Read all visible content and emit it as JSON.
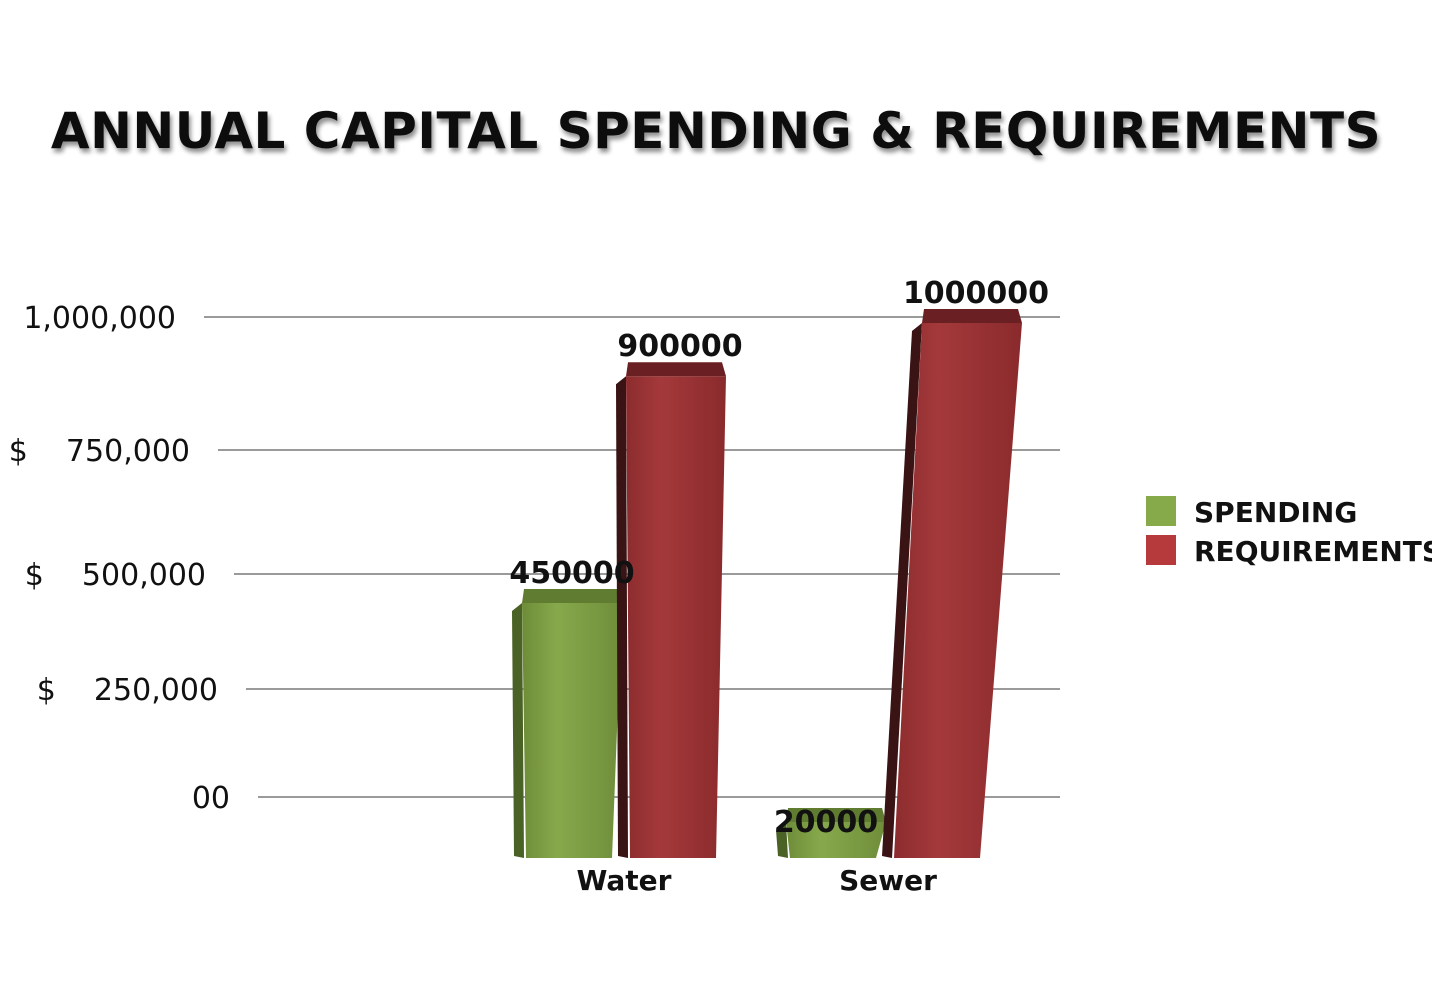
{
  "chart_data": {
    "type": "bar",
    "title": "ANNUAL CAPITAL SPENDING & REQUIREMENTS",
    "categories": [
      "Water",
      "Sewer"
    ],
    "series": [
      {
        "name": "SPENDING",
        "values": [
          450000,
          20000
        ],
        "labels": [
          "450000",
          "20000"
        ]
      },
      {
        "name": "REQUIREMENTS",
        "values": [
          900000,
          1000000
        ],
        "labels": [
          "900000",
          "1000000"
        ]
      }
    ],
    "y_ticks": [
      {
        "value": 0,
        "label": "00"
      },
      {
        "value": 250000,
        "label": "$    250,000"
      },
      {
        "value": 500000,
        "label": "$    500,000"
      },
      {
        "value": 750000,
        "label": "$    750,000"
      },
      {
        "value": 1000000,
        "label": "1,000,000"
      }
    ],
    "ylim": [
      0,
      1000000
    ],
    "grid": true,
    "legend_position": "right",
    "colors": {
      "SPENDING": "#7f9f45",
      "REQUIREMENTS": "#9b3436"
    }
  }
}
